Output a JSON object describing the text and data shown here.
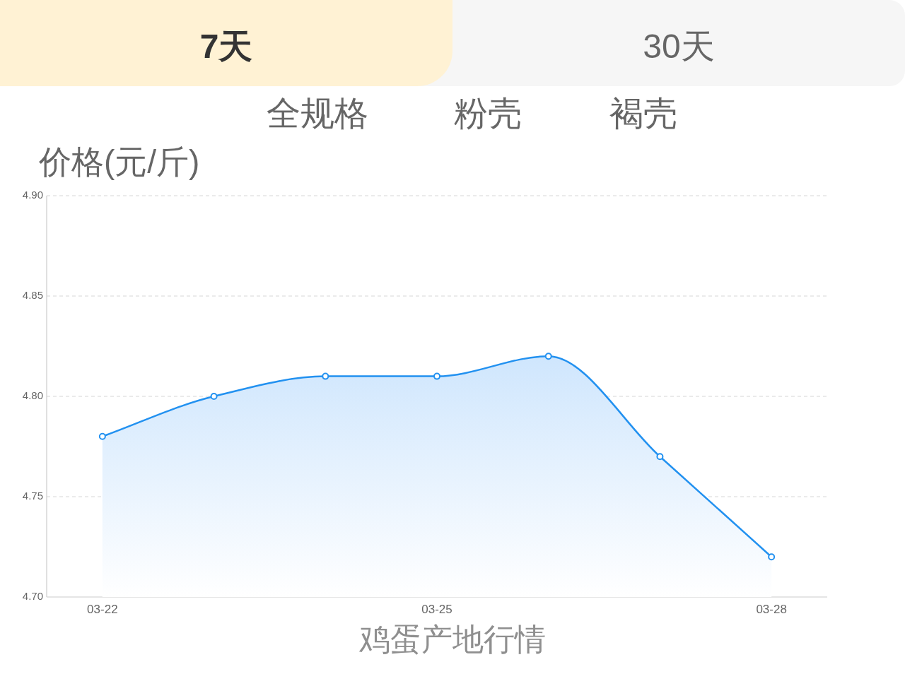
{
  "chart_data": {
    "type": "area",
    "title": "鸡蛋产地行情",
    "ylabel": "价格(元/斤)",
    "annotations": [
      "7天",
      "30天",
      "全规格",
      "粉壳",
      "褐壳"
    ],
    "categories": [
      "03-22",
      null,
      null,
      "03-25",
      null,
      null,
      "03-28"
    ],
    "values": [
      4.78,
      4.8,
      4.81,
      4.81,
      4.82,
      4.77,
      4.72
    ],
    "color": "#2291f0",
    "ylim": [
      4.7,
      4.9
    ],
    "yticks": [
      {
        "value": 4.7,
        "label": "4.70"
      },
      {
        "value": 4.75,
        "label": "4.75"
      },
      {
        "value": 4.8,
        "label": "4.80"
      },
      {
        "value": 4.85,
        "label": "4.85"
      },
      {
        "value": 4.9,
        "label": "4.90"
      }
    ],
    "grid": "y",
    "marker": "circle",
    "line_style": "solid"
  }
}
